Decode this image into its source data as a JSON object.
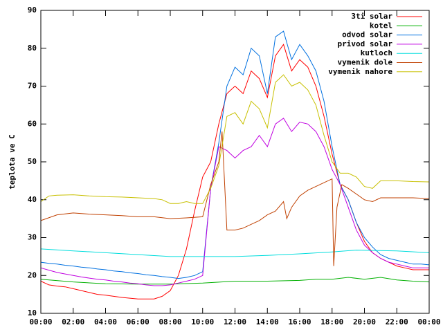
{
  "chart_data": {
    "type": "line",
    "ylabel": "teplota ve C",
    "xlim": [
      0,
      24
    ],
    "ylim": [
      10,
      90
    ],
    "yticks": [
      10,
      20,
      30,
      40,
      50,
      60,
      70,
      80,
      90
    ],
    "xticks": [
      {
        "value": 0,
        "label": "00:00"
      },
      {
        "value": 2,
        "label": "02:00"
      },
      {
        "value": 4,
        "label": "04:00"
      },
      {
        "value": 6,
        "label": "06:00"
      },
      {
        "value": 8,
        "label": "08:00"
      },
      {
        "value": 10,
        "label": "10:00"
      },
      {
        "value": 12,
        "label": "12:00"
      },
      {
        "value": 14,
        "label": "14:00"
      },
      {
        "value": 16,
        "label": "16:00"
      },
      {
        "value": 18,
        "label": "18:00"
      },
      {
        "value": 20,
        "label": "20:00"
      },
      {
        "value": 22,
        "label": "22:00"
      },
      {
        "value": 24,
        "label": "00:00"
      }
    ],
    "grid": false,
    "legend": "top-right",
    "series": [
      {
        "name": "3ti solar",
        "color": "#ff0000",
        "x": [
          0,
          0.5,
          1,
          1.5,
          2,
          2.5,
          3,
          3.5,
          4,
          4.5,
          5,
          5.5,
          6,
          6.5,
          7,
          7.5,
          8,
          8.5,
          9,
          9.5,
          10,
          10.5,
          11,
          11.5,
          12,
          12.5,
          13,
          13.5,
          14,
          14.5,
          15,
          15.5,
          16,
          16.5,
          17,
          17.5,
          18,
          18.5,
          19,
          19.5,
          20,
          20.5,
          21,
          21.5,
          22,
          22.5,
          23,
          23.5,
          24
        ],
        "values": [
          18.5,
          17.5,
          17.2,
          17,
          16.5,
          16,
          15.5,
          15,
          14.8,
          14.5,
          14.2,
          14,
          13.8,
          13.8,
          13.8,
          14.5,
          16,
          20,
          27,
          37,
          46,
          50,
          60,
          68,
          70,
          68,
          74,
          72,
          67,
          78,
          81,
          74,
          77,
          75,
          70,
          62,
          52,
          44,
          40,
          34,
          29,
          26,
          24.5,
          23.5,
          22.5,
          22,
          21.5,
          21.5,
          21.5
        ]
      },
      {
        "name": "kotel",
        "color": "#00b000",
        "x": [
          0,
          2,
          4,
          6,
          8,
          10,
          12,
          14,
          16,
          17,
          18,
          19,
          20,
          21,
          22,
          23,
          24
        ],
        "values": [
          19,
          18.3,
          17.8,
          17.7,
          17.7,
          18,
          18.5,
          18.5,
          18.7,
          19,
          19,
          19.5,
          19,
          19.5,
          18.8,
          18.5,
          18.3
        ]
      },
      {
        "name": "odvod solar",
        "color": "#0070e0",
        "x": [
          0,
          0.5,
          1,
          1.5,
          2,
          2.5,
          3,
          3.5,
          4,
          4.5,
          5,
          5.5,
          6,
          6.5,
          7,
          7.5,
          8,
          8.5,
          9,
          9.5,
          10,
          10.5,
          11,
          11.5,
          12,
          12.5,
          13,
          13.5,
          14,
          14.5,
          15,
          15.5,
          16,
          16.5,
          17,
          17.5,
          18,
          18.5,
          19,
          19.5,
          20,
          20.5,
          21,
          21.5,
          22,
          22.5,
          23,
          23.5,
          24
        ],
        "values": [
          23.5,
          23.2,
          23,
          22.7,
          22.5,
          22.2,
          22,
          21.7,
          21.5,
          21.2,
          21,
          20.7,
          20.5,
          20.2,
          20,
          19.7,
          19.5,
          19.2,
          19.5,
          20,
          21,
          43,
          55,
          70,
          75,
          73,
          80,
          78,
          68,
          83,
          84.5,
          77,
          81,
          78,
          74,
          66,
          54,
          44,
          40,
          34,
          30,
          27.5,
          25.5,
          24.5,
          24,
          23.5,
          23,
          23,
          22.8
        ]
      },
      {
        "name": "privod solar",
        "color": "#c000e0",
        "x": [
          0,
          0.5,
          1,
          1.5,
          2,
          2.5,
          3,
          3.5,
          4,
          4.5,
          5,
          5.5,
          6,
          6.5,
          7,
          7.5,
          8,
          8.5,
          9,
          9.5,
          10,
          10.5,
          11,
          11.5,
          12,
          12.5,
          13,
          13.5,
          14,
          14.5,
          15,
          15.5,
          16,
          16.5,
          17,
          17.5,
          18,
          18.5,
          19,
          19.5,
          20,
          20.5,
          21,
          21.5,
          22,
          22.5,
          23,
          23.5,
          24
        ],
        "values": [
          22,
          21.4,
          20.8,
          20.4,
          20,
          19.6,
          19.3,
          19,
          18.8,
          18.5,
          18.3,
          18,
          17.8,
          17.5,
          17.3,
          17.3,
          17.5,
          18,
          18.5,
          19,
          20,
          43,
          54,
          53,
          51,
          53,
          54,
          57,
          54,
          60,
          61.5,
          58,
          60.5,
          60,
          58,
          54,
          48,
          44,
          38,
          32,
          28,
          26,
          24.5,
          23.5,
          23,
          22.5,
          22,
          22,
          22
        ]
      },
      {
        "name": "kutloch",
        "color": "#00dddd",
        "x": [
          0,
          2,
          4,
          6,
          8,
          10,
          12,
          14,
          16,
          18,
          19.5,
          22,
          24
        ],
        "values": [
          27,
          26.5,
          26,
          25.5,
          25,
          25,
          25,
          25.3,
          25.7,
          26.2,
          26.7,
          26.5,
          26
        ]
      },
      {
        "name": "vymenik dole",
        "color": "#c04000",
        "x": [
          0,
          1,
          2,
          3,
          4,
          5,
          6,
          7,
          8,
          9,
          10,
          10.5,
          11,
          11.2,
          11.5,
          12,
          12.5,
          13,
          13.5,
          14,
          14.5,
          15,
          15.2,
          15.5,
          16,
          16.5,
          17,
          17.5,
          18,
          18.1,
          18.3,
          18.6,
          19,
          19.5,
          20,
          20.5,
          21,
          22,
          23,
          24
        ],
        "values": [
          34.5,
          36,
          36.5,
          36.2,
          36,
          35.8,
          35.5,
          35.5,
          35,
          35.2,
          35.5,
          44,
          50,
          58,
          32,
          32,
          32.5,
          33.5,
          34.5,
          36,
          37,
          39.5,
          35,
          38,
          41,
          42.5,
          43.5,
          44.5,
          45.5,
          22.5,
          38,
          44,
          43,
          41.5,
          40,
          39.5,
          40.5,
          40.5,
          40.5,
          40.3
        ]
      },
      {
        "name": "vymenik nahore",
        "color": "#c8c000",
        "x": [
          0,
          0.5,
          1,
          2,
          3,
          4,
          5,
          6,
          7,
          7.5,
          8,
          8.5,
          9,
          9.5,
          10,
          10.5,
          11,
          11.5,
          12,
          12.5,
          13,
          13.5,
          14,
          14.5,
          15,
          15.5,
          16,
          16.5,
          17,
          17.5,
          18,
          18.5,
          19,
          19.5,
          20,
          20.5,
          21,
          22,
          23,
          24
        ],
        "values": [
          39.5,
          41,
          41.2,
          41.3,
          41,
          40.8,
          40.7,
          40.5,
          40.3,
          40,
          39,
          39,
          39.5,
          39,
          39,
          43,
          49,
          62,
          63,
          60,
          66,
          64,
          59,
          71,
          73,
          70,
          71,
          69,
          65,
          57,
          50,
          47,
          47,
          46,
          43.5,
          43,
          45,
          45,
          44.8,
          44.7
        ]
      }
    ]
  }
}
